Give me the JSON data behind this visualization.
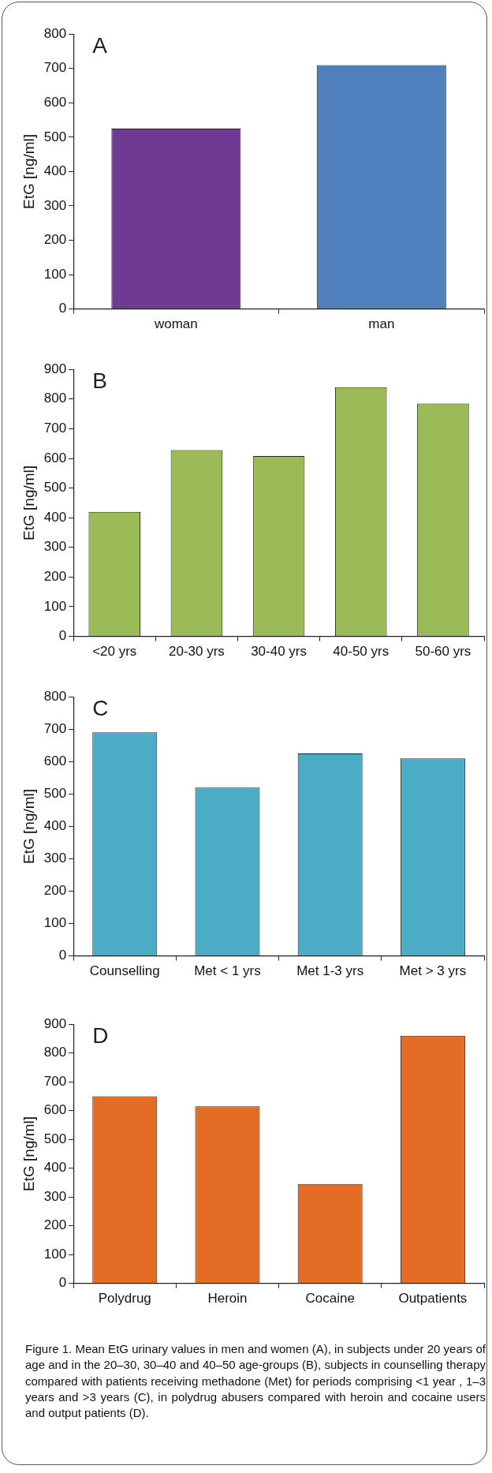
{
  "chart_data": [
    {
      "type": "bar",
      "title": "A",
      "ylabel": "EtG [ng/ml]",
      "categories": [
        "woman",
        "man"
      ],
      "series": [
        {
          "colors": [
            "#6f3a93",
            "#4f80bd"
          ],
          "values": [
            525,
            710
          ]
        }
      ],
      "ylim": [
        0,
        800
      ],
      "yticks": [
        0,
        100,
        200,
        300,
        400,
        500,
        600,
        700,
        800
      ],
      "grid": false,
      "legend": false
    },
    {
      "type": "bar",
      "title": "B",
      "ylabel": "EtG [ng/ml]",
      "categories": [
        "<20 yrs",
        "20-30 yrs",
        "30-40 yrs",
        "40-50 yrs",
        "50-60 yrs"
      ],
      "series": [
        {
          "color": "#9bbb59",
          "values": [
            420,
            628,
            608,
            840,
            785
          ]
        }
      ],
      "ylim": [
        0,
        900
      ],
      "yticks": [
        0,
        100,
        200,
        300,
        400,
        500,
        600,
        700,
        800,
        900
      ],
      "grid": false,
      "legend": false
    },
    {
      "type": "bar",
      "title": "C",
      "ylabel": "EtG [ng/ml]",
      "categories": [
        "Counselling",
        "Met < 1 yrs",
        "Met 1-3 yrs",
        "Met > 3 yrs"
      ],
      "series": [
        {
          "color": "#4bacc6",
          "values": [
            690,
            520,
            625,
            610
          ]
        }
      ],
      "ylim": [
        0,
        800
      ],
      "yticks": [
        0,
        100,
        200,
        300,
        400,
        500,
        600,
        700,
        800
      ],
      "grid": false,
      "legend": false
    },
    {
      "type": "bar",
      "title": "D",
      "ylabel": "EtG [ng/ml]",
      "categories": [
        "Polydrug",
        "Heroin",
        "Cocaine",
        "Outpatients"
      ],
      "series": [
        {
          "color": "#e46c25",
          "values": [
            650,
            615,
            345,
            860
          ]
        }
      ],
      "ylim": [
        0,
        900
      ],
      "yticks": [
        0,
        100,
        200,
        300,
        400,
        500,
        600,
        700,
        800,
        900
      ],
      "grid": false,
      "legend": false,
      "annotations": [
        "Figure 1. Mean EtG urinary values in men and women (A), in subjects under 20 years of age and in the 20–30, 30–40 and 40–50 age-groups (B), subjects in counselling therapy compared with patients receiving methadone (Met) for periods comprising <1 year , 1–3 years and >3 years (C), in polydrug abusers compared with heroin and cocaine users and output patients (D)."
      ]
    }
  ]
}
